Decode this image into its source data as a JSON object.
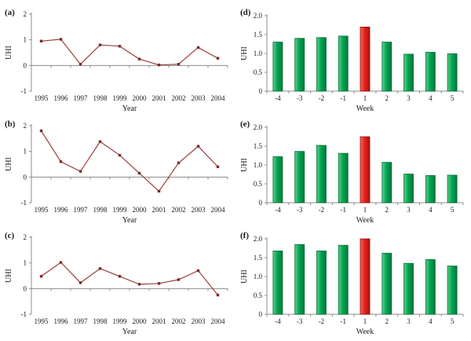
{
  "figure": {
    "description": "Six-panel UHI figure: annual line charts (a-c) and weekly bar charts (d-f)"
  },
  "colors": {
    "background": "#ffffff",
    "axis": "#8c8c8c",
    "text": "#1a1a1a",
    "line_series": "#96413d",
    "marker": "#7c2a28",
    "bar_green_light": "#63cf8e",
    "bar_green": "#00a651",
    "bar_green_dark": "#00773c",
    "bar_green_stroke": "#006b34",
    "bar_red_light": "#f4695f",
    "bar_red": "#e8211a",
    "bar_red_dark": "#a81310",
    "bar_red_stroke": "#8f0f0c"
  },
  "chart_data": [
    {
      "panel": "(a)",
      "type": "line",
      "x": [
        "1995",
        "1996",
        "1997",
        "1998",
        "1999",
        "2000",
        "2001",
        "2002",
        "2003",
        "2004"
      ],
      "values": [
        0.95,
        1.02,
        0.05,
        0.8,
        0.75,
        0.25,
        0.02,
        0.05,
        0.7,
        0.28
      ],
      "xlabel": "Year",
      "ylabel": "UHI",
      "ylim": [
        -1,
        2
      ],
      "yticks": [
        2,
        1,
        0,
        -1
      ],
      "ytick_labels": [
        "2",
        "1",
        "0",
        "-1"
      ],
      "grid": false,
      "legend": "none"
    },
    {
      "panel": "(b)",
      "type": "line",
      "x": [
        "1995",
        "1996",
        "1997",
        "1998",
        "1999",
        "2000",
        "2001",
        "2002",
        "2003",
        "2004"
      ],
      "values": [
        1.8,
        0.6,
        0.22,
        1.38,
        0.85,
        0.15,
        -0.55,
        0.55,
        1.2,
        0.4
      ],
      "xlabel": "Year",
      "ylabel": "UHI",
      "ylim": [
        -1,
        2
      ],
      "yticks": [
        2,
        1,
        0,
        -1
      ],
      "ytick_labels": [
        "2",
        "1",
        "0",
        "-1"
      ],
      "grid": false,
      "legend": "none"
    },
    {
      "panel": "(c)",
      "type": "line",
      "x": [
        "1995",
        "1996",
        "1997",
        "1998",
        "1999",
        "2000",
        "2001",
        "2002",
        "2003",
        "2004"
      ],
      "values": [
        0.48,
        1.02,
        0.23,
        0.78,
        0.48,
        0.17,
        0.2,
        0.35,
        0.7,
        -0.25
      ],
      "xlabel": "Year",
      "ylabel": "UHI",
      "ylim": [
        -1,
        2
      ],
      "yticks": [
        2,
        1,
        0,
        -1
      ],
      "ytick_labels": [
        "2",
        "1",
        "0",
        "-1"
      ],
      "grid": false,
      "legend": "none"
    },
    {
      "panel": "(d)",
      "type": "bar",
      "categories": [
        "-4",
        "-3",
        "-2",
        "-1",
        "1",
        "2",
        "3",
        "4",
        "5"
      ],
      "values": [
        1.3,
        1.4,
        1.42,
        1.46,
        1.7,
        1.3,
        0.98,
        1.03,
        0.99
      ],
      "xlabel": "Week",
      "ylabel": "UHI",
      "ylim": [
        0,
        2
      ],
      "yticks": [
        0,
        0.5,
        1.0,
        1.5,
        2.0
      ],
      "ytick_labels": [
        "0",
        "0.5",
        "1.0",
        "1.5",
        "2.0"
      ],
      "highlight_index": 4,
      "grid": false,
      "legend": "none"
    },
    {
      "panel": "(e)",
      "type": "bar",
      "categories": [
        "-4",
        "-3",
        "-2",
        "-1",
        "1",
        "2",
        "3",
        "4",
        "5"
      ],
      "values": [
        1.22,
        1.36,
        1.52,
        1.31,
        1.75,
        1.07,
        0.76,
        0.72,
        0.73
      ],
      "xlabel": "Week",
      "ylabel": "UHI",
      "ylim": [
        0,
        2
      ],
      "yticks": [
        0,
        0.5,
        1.0,
        1.5,
        2.0
      ],
      "ytick_labels": [
        "0",
        "0.5",
        "1.0",
        "1.5",
        "2.0"
      ],
      "highlight_index": 4,
      "grid": false,
      "legend": "none"
    },
    {
      "panel": "(f)",
      "type": "bar",
      "categories": [
        "-4",
        "-3",
        "-2",
        "-1",
        "1",
        "2",
        "3",
        "4",
        "5"
      ],
      "values": [
        1.68,
        1.85,
        1.68,
        1.83,
        2.0,
        1.62,
        1.35,
        1.45,
        1.28
      ],
      "xlabel": "Week",
      "ylabel": "UHI",
      "ylim": [
        0,
        2
      ],
      "yticks": [
        0,
        0.5,
        1.0,
        1.5,
        2.0
      ],
      "ytick_labels": [
        "0",
        "0.5",
        "1.0",
        "1.5",
        "2.0"
      ],
      "highlight_index": 4,
      "grid": false,
      "legend": "none"
    }
  ]
}
